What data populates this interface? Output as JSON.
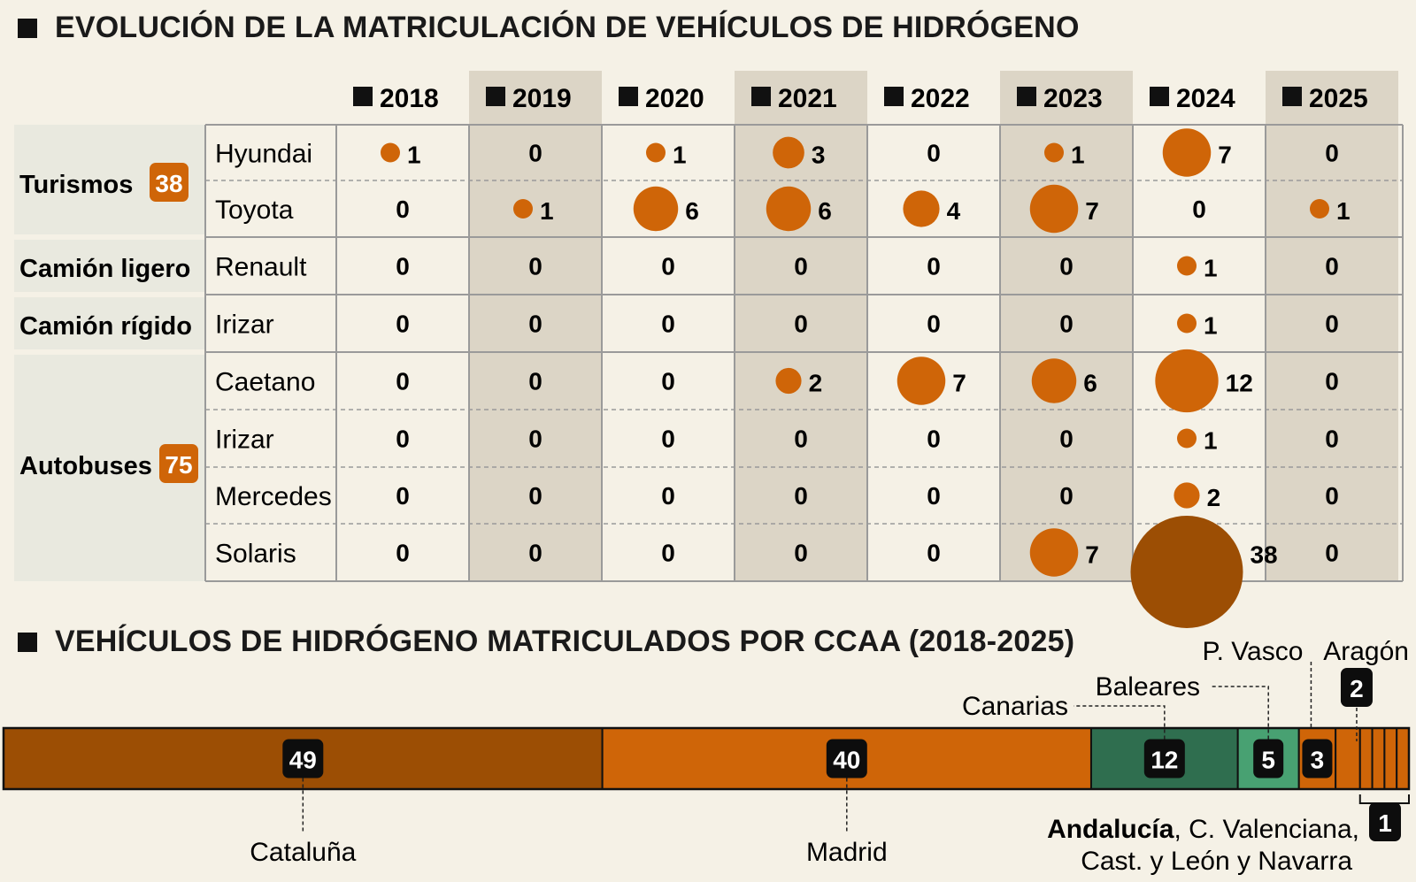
{
  "title_main": "EVOLUCIÓN DE LA MATRICULACIÓN DE VEHÍCULOS DE HIDRÓGENO",
  "title_regions": "VEHÍCULOS DE HIDRÓGENO MATRICULADOS POR CCAA (2018-2025)",
  "colors": {
    "dot": "#cf6508",
    "dot_dark": "#9c4e04",
    "shade_col": "#dcd5c6",
    "shade_cat": "#e9e9df",
    "bg": "#f5f1e6",
    "cat1": "#9c4e04",
    "cat2": "#cf6508",
    "cat3": "#2f6e4f",
    "cat4": "#48a172"
  },
  "chart_data": [
    {
      "type": "table",
      "title": "EVOLUCIÓN DE LA MATRICULACIÓN DE VEHÍCULOS DE HIDRÓGENO",
      "years": [
        "2018",
        "2019",
        "2020",
        "2021",
        "2022",
        "2023",
        "2024",
        "2025"
      ],
      "categories": [
        {
          "name": "Turismos",
          "total": "38",
          "rows": [
            0,
            1
          ]
        },
        {
          "name": "Camión ligero",
          "total": "",
          "rows": [
            2
          ]
        },
        {
          "name": "Camión rígido",
          "total": "",
          "rows": [
            3
          ]
        },
        {
          "name": "Autobuses",
          "total": "75",
          "rows": [
            4,
            5,
            6,
            7
          ]
        }
      ],
      "rows": [
        {
          "model": "Hyundai",
          "values": [
            1,
            0,
            1,
            3,
            0,
            1,
            7,
            0
          ]
        },
        {
          "model": "Toyota",
          "values": [
            0,
            1,
            6,
            6,
            4,
            7,
            0,
            1
          ]
        },
        {
          "model": "Renault",
          "values": [
            0,
            0,
            0,
            0,
            0,
            0,
            1,
            0
          ]
        },
        {
          "model": "Irizar",
          "values": [
            0,
            0,
            0,
            0,
            0,
            0,
            1,
            0
          ]
        },
        {
          "model": "Caetano",
          "values": [
            0,
            0,
            0,
            2,
            7,
            6,
            12,
            0
          ]
        },
        {
          "model": "Irizar",
          "values": [
            0,
            0,
            0,
            0,
            0,
            0,
            1,
            0
          ]
        },
        {
          "model": "Mercedes",
          "values": [
            0,
            0,
            0,
            0,
            0,
            0,
            2,
            0
          ]
        },
        {
          "model": "Solaris",
          "values": [
            0,
            0,
            0,
            0,
            0,
            7,
            38,
            0
          ]
        }
      ]
    },
    {
      "type": "bar",
      "orientation": "horizontal-stacked",
      "title": "VEHÍCULOS DE HIDRÓGENO MATRICULADOS POR CCAA (2018-2025)",
      "segments": [
        {
          "label": "Cataluña",
          "value": 49
        },
        {
          "label": "Madrid",
          "value": 40
        },
        {
          "label": "Canarias",
          "value": 12
        },
        {
          "label": "Baleares",
          "value": 5
        },
        {
          "label": "P. Vasco",
          "value": 3
        },
        {
          "label": "Aragón",
          "value": 2
        },
        {
          "label": "Andalucía",
          "value": 1
        },
        {
          "label": "C. Valenciana",
          "value": 1
        },
        {
          "label": "Cast. y León",
          "value": 1
        },
        {
          "label": "Navarra",
          "value": 1
        }
      ],
      "annotations": {
        "andalucia": "Andalucía",
        "rest_line1": ", C. Valenciana,",
        "rest_line2": "Cast. y León y Navarra",
        "group_value": "1"
      }
    }
  ]
}
